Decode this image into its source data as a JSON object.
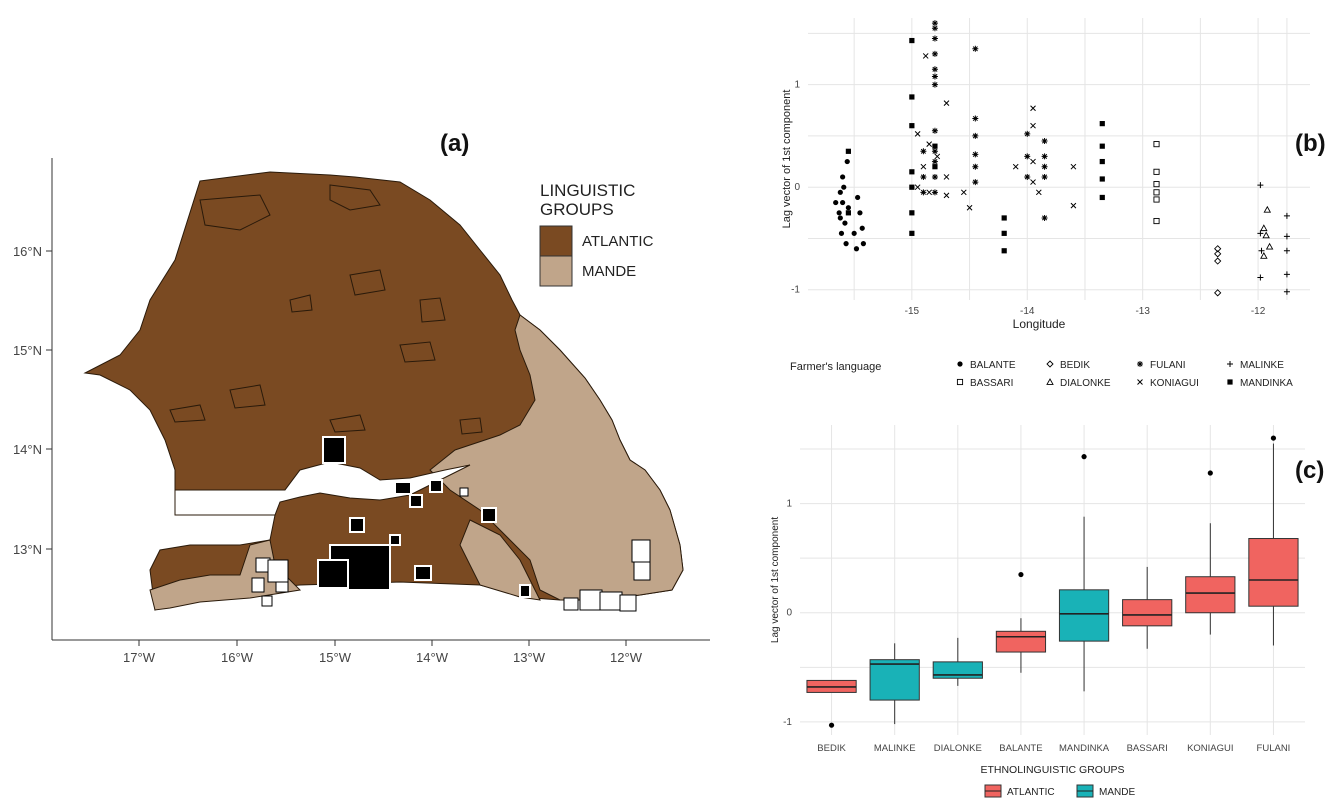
{
  "panels": {
    "a_label": "(a)",
    "b_label": "(b)",
    "c_label": "(c)"
  },
  "map": {
    "legend_title_line1": "LINGUISTIC",
    "legend_title_line2": "GROUPS",
    "legend_items": [
      {
        "label": "ATLANTIC",
        "color": "#7a4a22"
      },
      {
        "label": "MANDE",
        "color": "#c0a58a"
      }
    ],
    "lat_labels": [
      "16°N",
      "15°N",
      "14°N",
      "13°N"
    ],
    "lon_labels": [
      "17°W",
      "16°W",
      "15°W",
      "14°W",
      "13°W",
      "12°W"
    ]
  },
  "chart_data": [
    {
      "type": "scatter",
      "panel": "b",
      "xlabel": "Longitude",
      "ylabel": "Lag vector of 1st component",
      "xlim": [
        -15.9,
        -11.55
      ],
      "ylim": [
        -1.1,
        1.65
      ],
      "x_ticks": [
        -15,
        -14,
        -13,
        -12
      ],
      "y_ticks": [
        -1,
        0,
        1
      ],
      "grid": true,
      "legend_title": "Farmer's language",
      "legend_position": "bottom",
      "series": [
        {
          "name": "BALANTE",
          "marker": "circle",
          "points": [
            [
              -15.62,
              -0.05
            ],
            [
              -15.6,
              -0.15
            ],
            [
              -15.63,
              -0.25
            ],
            [
              -15.58,
              -0.35
            ],
            [
              -15.61,
              -0.45
            ],
            [
              -15.57,
              -0.55
            ],
            [
              -15.6,
              0.1
            ],
            [
              -15.56,
              0.25
            ],
            [
              -15.62,
              -0.3
            ],
            [
              -15.55,
              -0.2
            ],
            [
              -15.47,
              -0.1
            ],
            [
              -15.45,
              -0.25
            ],
            [
              -15.43,
              -0.4
            ],
            [
              -15.42,
              -0.55
            ],
            [
              -15.5,
              -0.45
            ],
            [
              -15.48,
              -0.6
            ],
            [
              -15.66,
              -0.15
            ],
            [
              -15.59,
              0.0
            ]
          ]
        },
        {
          "name": "BASSARI",
          "marker": "square-open",
          "points": [
            [
              -12.88,
              0.42
            ],
            [
              -12.88,
              0.15
            ],
            [
              -12.88,
              0.03
            ],
            [
              -12.88,
              -0.05
            ],
            [
              -12.88,
              -0.12
            ],
            [
              -12.88,
              -0.33
            ]
          ]
        },
        {
          "name": "BEDIK",
          "marker": "diamond-open",
          "points": [
            [
              -12.35,
              -0.6
            ],
            [
              -12.35,
              -0.65
            ],
            [
              -12.35,
              -0.72
            ],
            [
              -12.35,
              -1.03
            ]
          ]
        },
        {
          "name": "DIALONKE",
          "marker": "triangle-open",
          "points": [
            [
              -11.92,
              -0.22
            ],
            [
              -11.95,
              -0.4
            ],
            [
              -11.93,
              -0.47
            ],
            [
              -11.9,
              -0.58
            ],
            [
              -11.95,
              -0.67
            ]
          ]
        },
        {
          "name": "FULANI",
          "marker": "star",
          "points": [
            [
              -14.8,
              1.6
            ],
            [
              -14.8,
              1.55
            ],
            [
              -14.8,
              1.45
            ],
            [
              -14.8,
              1.3
            ],
            [
              -14.8,
              1.15
            ],
            [
              -14.8,
              1.08
            ],
            [
              -14.8,
              1.0
            ],
            [
              -14.8,
              0.55
            ],
            [
              -14.8,
              0.35
            ],
            [
              -14.8,
              0.25
            ],
            [
              -14.8,
              0.1
            ],
            [
              -14.8,
              -0.05
            ],
            [
              -14.45,
              1.35
            ],
            [
              -14.45,
              0.67
            ],
            [
              -14.45,
              0.5
            ],
            [
              -14.45,
              0.32
            ],
            [
              -14.45,
              0.2
            ],
            [
              -14.45,
              0.05
            ],
            [
              -14.0,
              0.52
            ],
            [
              -14.0,
              0.3
            ],
            [
              -14.0,
              0.1
            ],
            [
              -13.85,
              0.45
            ],
            [
              -13.85,
              0.3
            ],
            [
              -13.85,
              0.2
            ],
            [
              -13.85,
              0.1
            ],
            [
              -13.85,
              -0.3
            ],
            [
              -14.9,
              0.35
            ],
            [
              -14.9,
              0.1
            ],
            [
              -14.9,
              -0.05
            ]
          ]
        },
        {
          "name": "KONIAGUI",
          "marker": "x",
          "points": [
            [
              -14.88,
              1.28
            ],
            [
              -14.7,
              0.82
            ],
            [
              -14.95,
              0.52
            ],
            [
              -14.85,
              0.42
            ],
            [
              -14.9,
              0.2
            ],
            [
              -14.78,
              0.3
            ],
            [
              -14.7,
              0.1
            ],
            [
              -14.95,
              0.0
            ],
            [
              -14.85,
              -0.05
            ],
            [
              -14.7,
              -0.08
            ],
            [
              -14.55,
              -0.05
            ],
            [
              -14.5,
              -0.2
            ],
            [
              -13.95,
              0.77
            ],
            [
              -13.95,
              0.6
            ],
            [
              -13.95,
              0.25
            ],
            [
              -13.95,
              0.05
            ],
            [
              -13.9,
              -0.05
            ],
            [
              -14.1,
              0.2
            ],
            [
              -13.6,
              -0.18
            ],
            [
              -13.6,
              0.2
            ]
          ]
        },
        {
          "name": "MALINKE",
          "marker": "plus",
          "points": [
            [
              -11.98,
              0.02
            ],
            [
              -11.98,
              -0.45
            ],
            [
              -11.97,
              -0.62
            ],
            [
              -11.98,
              -0.88
            ],
            [
              -11.75,
              -0.28
            ],
            [
              -11.75,
              -0.48
            ],
            [
              -11.75,
              -0.62
            ],
            [
              -11.75,
              -0.85
            ],
            [
              -11.75,
              -1.02
            ]
          ]
        },
        {
          "name": "MANDINKA",
          "marker": "square",
          "points": [
            [
              -15.0,
              1.43
            ],
            [
              -15.0,
              0.88
            ],
            [
              -15.0,
              0.6
            ],
            [
              -15.0,
              0.15
            ],
            [
              -15.0,
              0.0
            ],
            [
              -15.0,
              -0.25
            ],
            [
              -15.0,
              -0.45
            ],
            [
              -14.8,
              0.4
            ],
            [
              -14.8,
              0.2
            ],
            [
              -14.2,
              -0.3
            ],
            [
              -14.2,
              -0.45
            ],
            [
              -14.2,
              -0.62
            ],
            [
              -13.35,
              0.62
            ],
            [
              -13.35,
              0.4
            ],
            [
              -13.35,
              0.25
            ],
            [
              -13.35,
              0.08
            ],
            [
              -13.35,
              -0.1
            ],
            [
              -15.55,
              0.35
            ],
            [
              -15.55,
              -0.25
            ]
          ]
        }
      ]
    },
    {
      "type": "box",
      "panel": "c",
      "xlabel": "ETHNOLINGUISTIC GROUPS",
      "ylabel": "Lag vector of 1st component",
      "ylim": [
        -1.12,
        1.72
      ],
      "y_ticks": [
        -1,
        0,
        1
      ],
      "grid": true,
      "legend_position": "bottom",
      "legend": [
        {
          "label": "ATLANTIC",
          "color": "#f06460"
        },
        {
          "label": "MANDE",
          "color": "#19b2b7"
        }
      ],
      "categories": [
        "BEDIK",
        "MALINKE",
        "DIALONKE",
        "BALANTE",
        "MANDINKA",
        "BASSARI",
        "KONIAGUI",
        "FULANI"
      ],
      "groups": [
        "ATLANTIC",
        "MANDE",
        "MANDE",
        "ATLANTIC",
        "MANDE",
        "ATLANTIC",
        "ATLANTIC",
        "ATLANTIC"
      ],
      "boxes": [
        {
          "whisker_low": -0.73,
          "q1": -0.73,
          "median": -0.68,
          "q3": -0.62,
          "whisker_high": -0.62,
          "outliers": [
            -1.03
          ]
        },
        {
          "whisker_low": -1.02,
          "q1": -0.8,
          "median": -0.47,
          "q3": -0.43,
          "whisker_high": -0.28,
          "outliers": []
        },
        {
          "whisker_low": -0.67,
          "q1": -0.6,
          "median": -0.57,
          "q3": -0.45,
          "whisker_high": -0.23,
          "outliers": []
        },
        {
          "whisker_low": -0.55,
          "q1": -0.36,
          "median": -0.22,
          "q3": -0.17,
          "whisker_high": -0.05,
          "outliers": [
            0.35
          ]
        },
        {
          "whisker_low": -0.72,
          "q1": -0.26,
          "median": -0.01,
          "q3": 0.21,
          "whisker_high": 0.88,
          "outliers": [
            1.43
          ]
        },
        {
          "whisker_low": -0.33,
          "q1": -0.12,
          "median": -0.02,
          "q3": 0.12,
          "whisker_high": 0.42,
          "outliers": []
        },
        {
          "whisker_low": -0.2,
          "q1": 0.0,
          "median": 0.18,
          "q3": 0.33,
          "whisker_high": 0.82,
          "outliers": [
            1.28
          ]
        },
        {
          "whisker_low": -0.3,
          "q1": 0.06,
          "median": 0.3,
          "q3": 0.68,
          "whisker_high": 1.55,
          "outliers": [
            1.6
          ]
        }
      ]
    }
  ]
}
